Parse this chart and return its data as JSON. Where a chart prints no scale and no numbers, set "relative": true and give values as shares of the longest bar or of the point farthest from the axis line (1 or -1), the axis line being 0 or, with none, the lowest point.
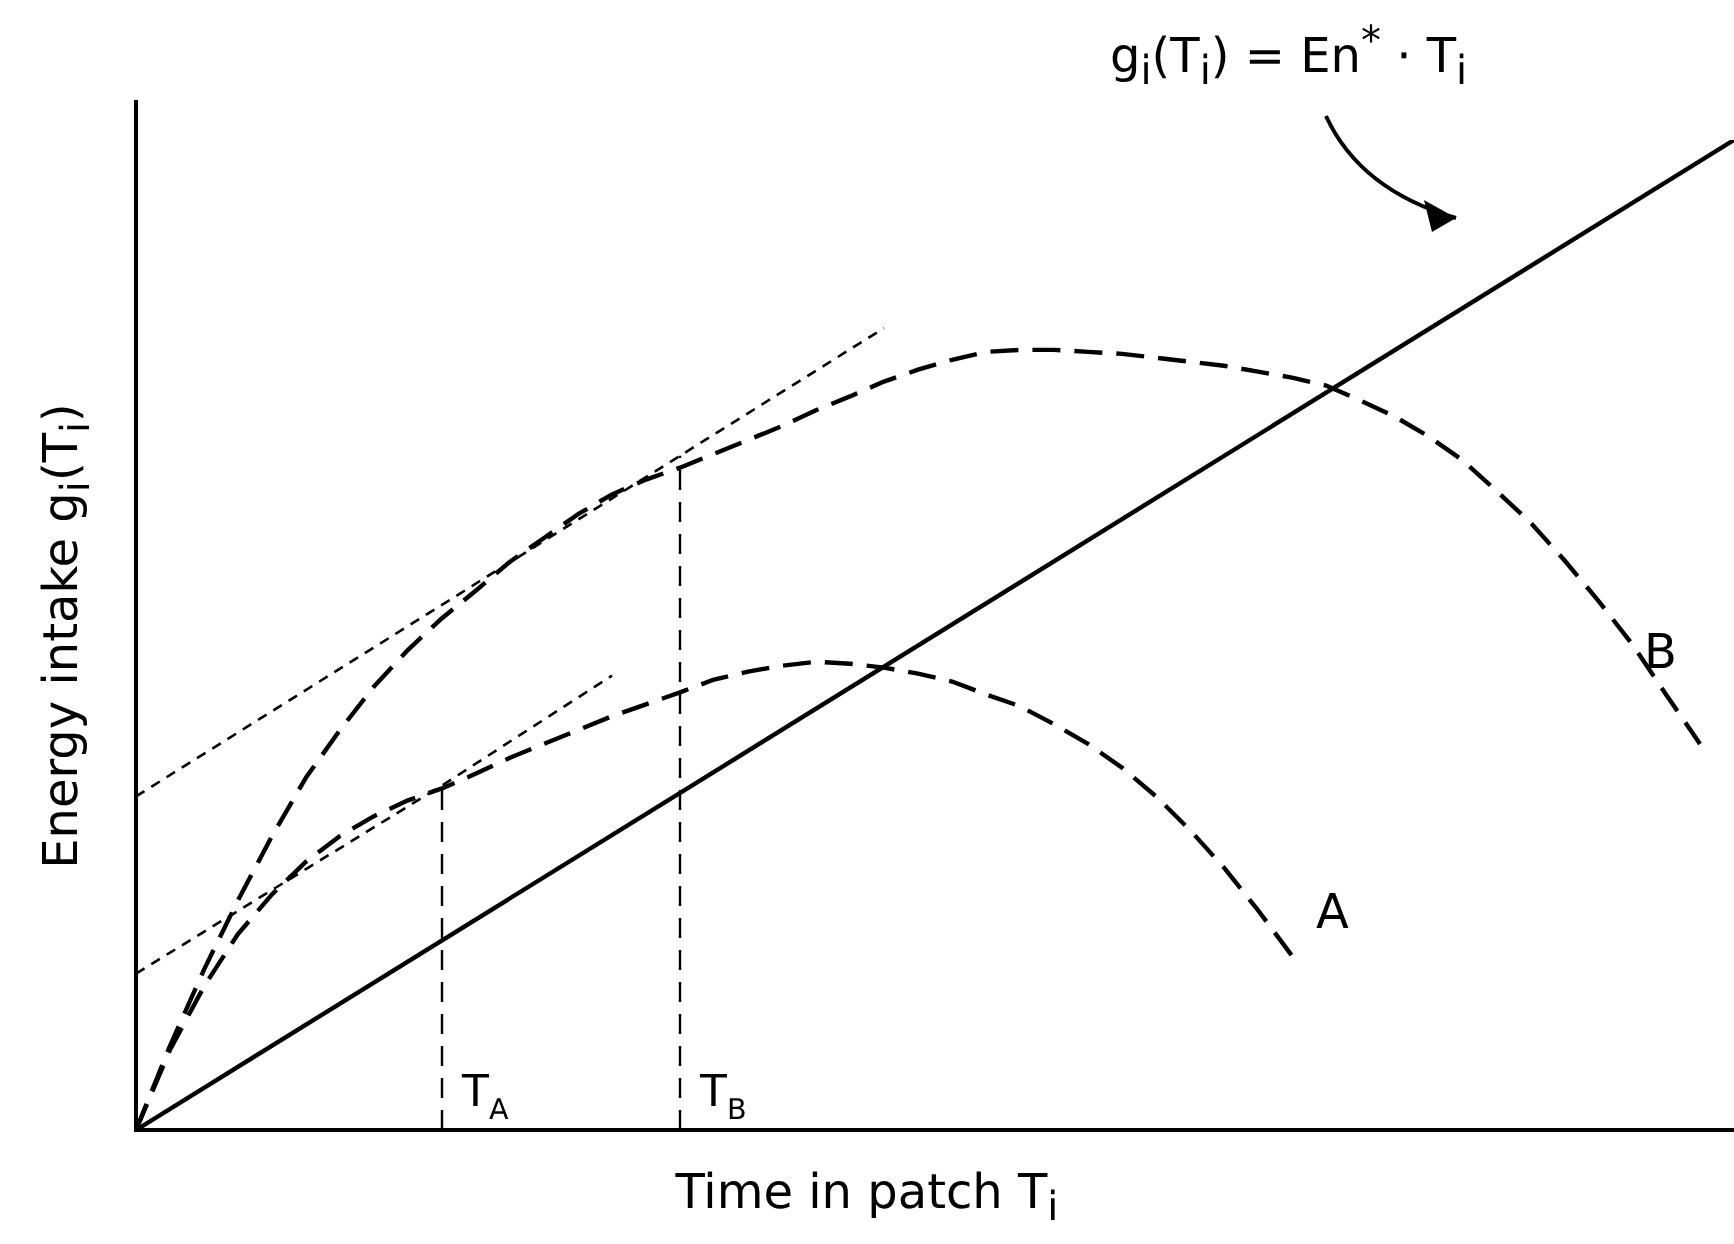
{
  "chart_data": {
    "type": "line",
    "relative": true,
    "legend": false,
    "xlabel": "Time  in  patch  T$_{i}$",
    "ylabel": "Energy  intake  g$_{i}$(T$_{i}$)",
    "annotations": [
      "g$_{i}$(T$_{i}$) = En$^{*}$ · T$_{i}$",
      "T$_{A}$",
      "T$_{B}$"
    ],
    "categories": [
      null,
      null,
      null,
      null,
      null,
      null,
      null,
      null,
      null,
      null,
      null,
      null,
      null,
      null,
      null,
      null,
      null,
      null,
      null,
      null,
      null,
      null,
      null,
      null,
      null,
      null,
      null,
      null,
      null,
      null,
      null,
      null,
      null,
      null,
      null,
      null,
      null,
      null,
      null,
      null,
      null,
      null,
      null,
      null,
      null,
      null,
      null,
      null
    ],
    "series": [
      {
        "color": "#000000",
        "line_style": "solid",
        "values": [
          0,
          null,
          null,
          null,
          null,
          null,
          null,
          null,
          null,
          null,
          null,
          null,
          null,
          null,
          null,
          null,
          null,
          null,
          null,
          null,
          null,
          null,
          null,
          null,
          null,
          null,
          null,
          null,
          null,
          null,
          null,
          null,
          null,
          null,
          null,
          null,
          null,
          null,
          null,
          null,
          null,
          null,
          null,
          null,
          null,
          null,
          null,
          1
        ]
      },
      {
        "name": "A",
        "color": "#000000",
        "line_style": "dashed",
        "values": [
          0,
          0.081,
          0.145,
          0.198,
          0.238,
          0.271,
          0.297,
          0.317,
          0.333,
          0.345,
          0.36,
          0.376,
          0.39,
          0.404,
          0.418,
          0.43,
          0.442,
          0.455,
          0.463,
          0.469,
          0.473,
          0.471,
          0.467,
          0.461,
          0.453,
          0.44,
          0.428,
          0.41,
          0.39,
          0.366,
          0.337,
          0.303,
          0.265,
          0.222,
          0.176,
          null,
          null,
          null,
          null,
          null,
          null,
          null,
          null,
          null,
          null,
          null,
          null,
          null
        ]
      },
      {
        "name": "B",
        "color": "#000000",
        "line_style": "dashed",
        "values": [
          0,
          0.085,
          0.162,
          0.232,
          0.297,
          0.356,
          0.404,
          0.448,
          0.485,
          0.517,
          0.545,
          0.574,
          0.598,
          0.622,
          0.642,
          0.657,
          0.669,
          0.683,
          0.697,
          0.711,
          0.727,
          0.741,
          0.756,
          0.768,
          0.778,
          0.786,
          0.788,
          0.788,
          0.786,
          0.784,
          0.78,
          0.776,
          0.772,
          0.766,
          0.76,
          0.752,
          0.737,
          0.721,
          0.701,
          0.677,
          0.646,
          0.614,
          0.576,
          0.535,
          0.491,
          0.44,
          0.39,
          null
        ]
      },
      {
        "color": "#000000",
        "line_style": "dotted",
        "values": [
          0.158,
          null,
          null,
          null,
          null,
          null,
          null,
          null,
          null,
          0.348,
          null,
          null,
          null,
          null,
          0.459,
          null,
          null,
          null,
          null,
          null,
          null,
          null,
          null,
          null,
          null,
          null,
          null,
          null,
          null,
          null,
          null,
          null,
          null,
          null,
          null,
          null,
          null,
          null,
          null,
          null,
          null,
          null,
          null,
          null,
          null,
          null,
          null,
          null
        ]
      },
      {
        "color": "#000000",
        "line_style": "dotted",
        "values": [
          0.337,
          null,
          null,
          null,
          null,
          null,
          null,
          null,
          null,
          null,
          null,
          null,
          null,
          null,
          null,
          null,
          0.681,
          null,
          null,
          null,
          null,
          null,
          0.81,
          null,
          null,
          null,
          null,
          null,
          null,
          null,
          null,
          null,
          null,
          null,
          null,
          null,
          null,
          null,
          null,
          null,
          null,
          null,
          null,
          null,
          null,
          null,
          null,
          null
        ]
      }
    ]
  }
}
